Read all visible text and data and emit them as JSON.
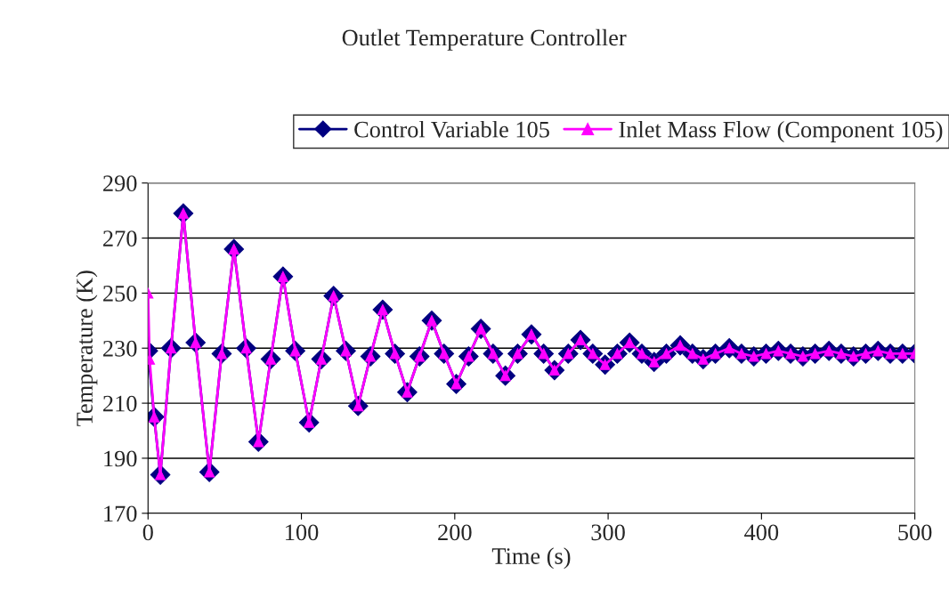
{
  "chart_data": {
    "type": "line",
    "title": "Outlet Temperature Controller",
    "xlabel": "Time (s)",
    "ylabel": "Temperature (K)",
    "series": [
      {
        "name": "Control Variable 105",
        "color": "#000080",
        "marker": "diamond",
        "x": [
          0,
          4,
          8,
          15,
          23,
          31,
          40,
          48,
          56,
          64,
          72,
          80,
          88,
          96,
          105,
          113,
          121,
          129,
          137,
          145,
          153,
          161,
          169,
          177,
          185,
          193,
          201,
          209,
          217,
          225,
          233,
          241,
          250,
          258,
          265,
          274,
          282,
          290,
          298,
          306,
          314,
          322,
          330,
          338,
          347,
          355,
          362,
          370,
          379,
          387,
          395,
          403,
          411,
          419,
          427,
          435,
          444,
          452,
          460,
          468,
          476,
          484,
          492,
          500
        ],
        "values": [
          229,
          205,
          184,
          230,
          279,
          232,
          185,
          228,
          266,
          230,
          196,
          226,
          256,
          229,
          203,
          226,
          249,
          229,
          209,
          227,
          244,
          228,
          214,
          227,
          240,
          228,
          217,
          227,
          237,
          228,
          220,
          228,
          235,
          228,
          222,
          228,
          233,
          228,
          224,
          228,
          232,
          228,
          225,
          228,
          231,
          228,
          226,
          228,
          230,
          228,
          227,
          228,
          229,
          228,
          227,
          228,
          229,
          228,
          227,
          228,
          229,
          228,
          228,
          228
        ]
      },
      {
        "name": "Inlet Mass Flow (Component 105)",
        "color": "#ff00ff",
        "marker": "triangle",
        "x": [
          0,
          1,
          4,
          8,
          15,
          23,
          31,
          40,
          48,
          56,
          64,
          72,
          80,
          88,
          96,
          105,
          113,
          121,
          129,
          137,
          145,
          153,
          161,
          169,
          177,
          185,
          193,
          201,
          209,
          217,
          225,
          233,
          241,
          250,
          258,
          265,
          274,
          282,
          290,
          298,
          306,
          314,
          322,
          330,
          338,
          347,
          355,
          362,
          370,
          379,
          387,
          395,
          403,
          411,
          419,
          427,
          435,
          444,
          452,
          460,
          468,
          476,
          484,
          492,
          500
        ],
        "values": [
          250,
          226,
          205,
          184,
          230,
          279,
          232,
          185,
          228,
          266,
          230,
          196,
          226,
          256,
          229,
          203,
          226,
          249,
          229,
          209,
          227,
          244,
          228,
          214,
          227,
          240,
          228,
          217,
          227,
          237,
          228,
          220,
          228,
          235,
          228,
          222,
          228,
          233,
          228,
          224,
          228,
          232,
          228,
          225,
          228,
          231,
          228,
          226,
          228,
          230,
          228,
          227,
          228,
          229,
          228,
          227,
          228,
          229,
          228,
          227,
          228,
          229,
          228,
          228,
          228
        ]
      }
    ],
    "xlim": [
      0,
      500
    ],
    "xticks": [
      0,
      100,
      200,
      300,
      400,
      500
    ],
    "ylim": [
      170,
      290
    ],
    "yticks": [
      170,
      190,
      210,
      230,
      250,
      270,
      290
    ],
    "grid": "y",
    "legend": "top"
  }
}
